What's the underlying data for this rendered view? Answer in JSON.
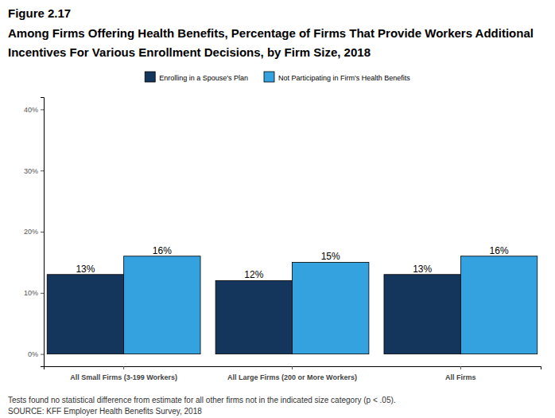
{
  "chart_data": {
    "type": "bar",
    "title": "Figure 2.17",
    "subtitle": "Among Firms Offering Health Benefits, Percentage of Firms That Provide Workers Additional Incentives For Various Enrollment Decisions, by Firm Size, 2018",
    "annotations": [
      "Tests found no statistical difference from estimate for all other firms not in the indicated size category (p < .05).",
      "SOURCE: KFF Employer Health Benefits Survey, 2018"
    ],
    "categories": [
      "All Small Firms (3-199 Workers)",
      "All Large Firms (200 or More Workers)",
      "All Firms"
    ],
    "series": [
      {
        "name": "Enrolling in a Spouse's Plan",
        "color": "#14365d",
        "values": [
          13,
          12,
          13
        ],
        "value_labels": [
          "13%",
          "12%",
          "13%"
        ]
      },
      {
        "name": "Not Participating in Firm's Health Benefits",
        "color": "#35a2e0",
        "values": [
          16,
          15,
          16
        ],
        "value_labels": [
          "16%",
          "15%",
          "16%"
        ]
      }
    ],
    "ylim": [
      -2,
      42
    ],
    "yticks": [
      {
        "value": 0,
        "label": "0%"
      },
      {
        "value": 10,
        "label": "10%"
      },
      {
        "value": 20,
        "label": "20%"
      },
      {
        "value": 30,
        "label": "30%"
      },
      {
        "value": 40,
        "label": "40%"
      }
    ],
    "grid": false,
    "legend": "top",
    "data_labels": true
  }
}
